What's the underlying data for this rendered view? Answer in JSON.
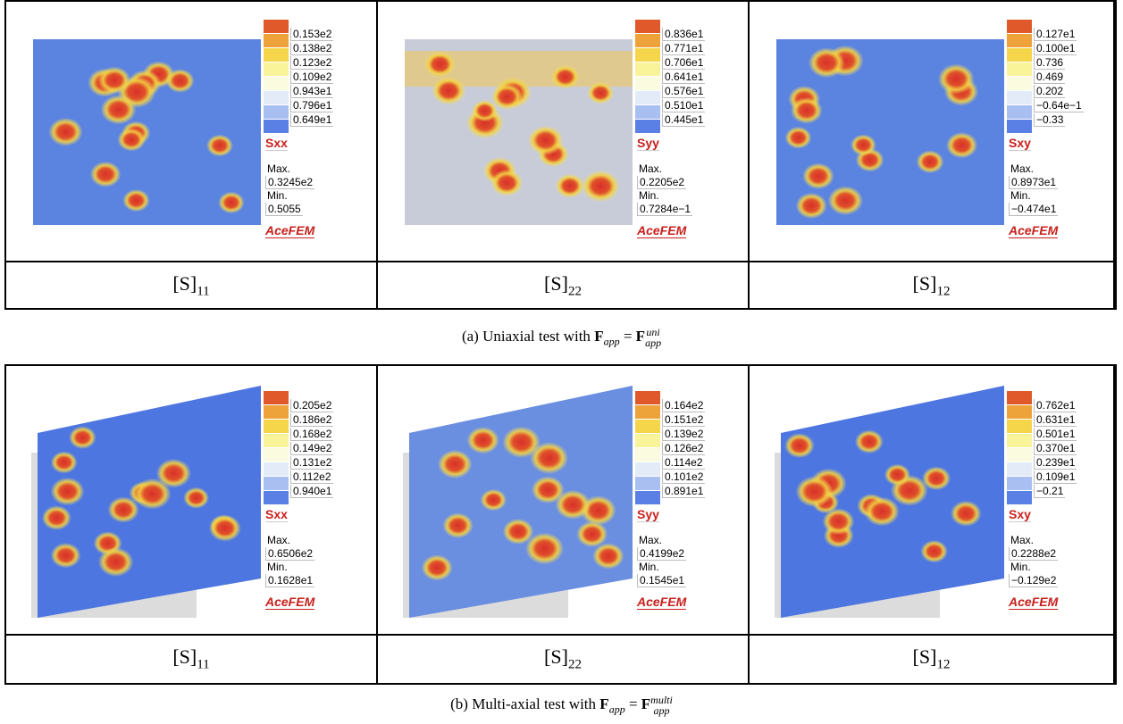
{
  "figures": [
    {
      "panels": [
        {
          "variable": "Sxx",
          "legend": [
            "0.153e2",
            "0.138e2",
            "0.123e2",
            "0.109e2",
            "0.943e1",
            "0.796e1",
            "0.649e1"
          ],
          "max_label": "Max.",
          "max": "0.3245e2",
          "min_label": "Min.",
          "min": "0.5055",
          "brand": "AceFEM",
          "caption": {
            "base": "[S]",
            "sub": "11"
          }
        },
        {
          "variable": "Syy",
          "legend": [
            "0.836e1",
            "0.771e1",
            "0.706e1",
            "0.641e1",
            "0.576e1",
            "0.510e1",
            "0.445e1"
          ],
          "max_label": "Max.",
          "max": "0.2205e2",
          "min_label": "Min.",
          "min": "0.7284e−1",
          "brand": "AceFEM",
          "caption": {
            "base": "[S]",
            "sub": "22"
          }
        },
        {
          "variable": "Sxy",
          "legend": [
            "0.127e1",
            "0.100e1",
            "0.736",
            "0.469",
            "0.202",
            "−0.64e−1",
            "−0.33"
          ],
          "max_label": "Max.",
          "max": "0.8973e1",
          "min_label": "Min.",
          "min": "−0.474e1",
          "brand": "AceFEM",
          "caption": {
            "base": "[S]",
            "sub": "12"
          }
        }
      ],
      "caption": {
        "label": "(a)",
        "text": "Uniaxial test with",
        "lhs": {
          "base": "F",
          "sub": "app"
        },
        "eq": "=",
        "rhs": {
          "base": "F",
          "sub": "app",
          "sup": "uni"
        }
      }
    },
    {
      "panels": [
        {
          "variable": "Sxx",
          "legend": [
            "0.205e2",
            "0.186e2",
            "0.168e2",
            "0.149e2",
            "0.131e2",
            "0.112e2",
            "0.940e1"
          ],
          "max_label": "Max.",
          "max": "0.6506e2",
          "min_label": "Min.",
          "min": "0.1628e1",
          "brand": "AceFEM",
          "caption": {
            "base": "[S]",
            "sub": "11"
          }
        },
        {
          "variable": "Syy",
          "legend": [
            "0.164e2",
            "0.151e2",
            "0.139e2",
            "0.126e2",
            "0.114e2",
            "0.101e2",
            "0.891e1"
          ],
          "max_label": "Max.",
          "max": "0.4199e2",
          "min_label": "Min.",
          "min": "0.1545e1",
          "brand": "AceFEM",
          "caption": {
            "base": "[S]",
            "sub": "22"
          }
        },
        {
          "variable": "Sxy",
          "legend": [
            "0.762e1",
            "0.631e1",
            "0.501e1",
            "0.370e1",
            "0.239e1",
            "0.109e1",
            "−0.21"
          ],
          "max_label": "Max.",
          "max": "0.2288e2",
          "min_label": "Min.",
          "min": "−0.129e2",
          "brand": "AceFEM",
          "caption": {
            "base": "[S]",
            "sub": "12"
          }
        }
      ],
      "caption": {
        "label": "(b)",
        "text": "Multi-axial test with",
        "lhs": {
          "base": "F",
          "sub": "app"
        },
        "eq": "=",
        "rhs": {
          "base": "F",
          "sub": "app",
          "sup": "multi"
        }
      }
    }
  ]
}
